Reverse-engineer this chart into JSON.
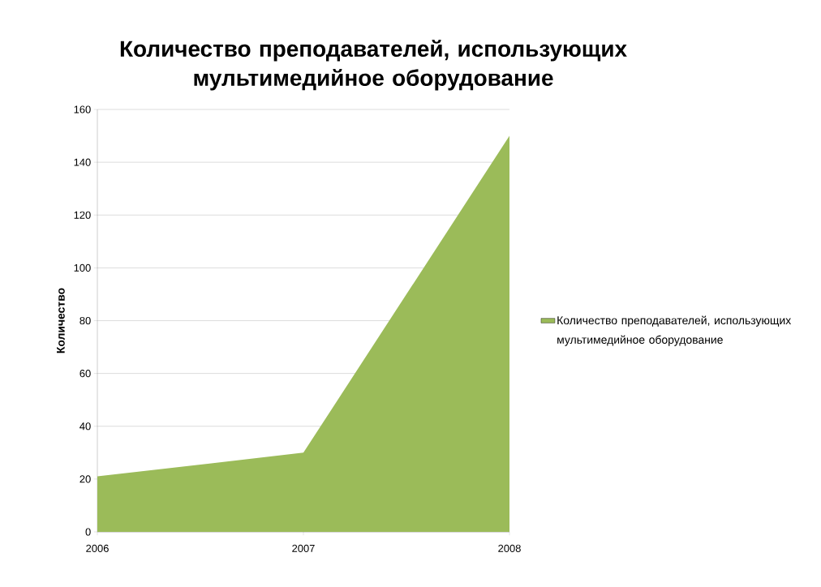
{
  "chart_data": {
    "type": "area",
    "title": "Количество преподавателей, использующих мультимедийное оборудование",
    "ylabel": "Количество",
    "categories": [
      "2006",
      "2007",
      "2008"
    ],
    "series": [
      {
        "name": "Количество преподавателей, использующих мультимедийное оборудование",
        "color": "#9bbb59",
        "values": [
          21,
          30,
          150
        ]
      }
    ],
    "ylim": [
      0,
      160
    ],
    "yticks": [
      0,
      20,
      40,
      60,
      80,
      100,
      120,
      140,
      160
    ],
    "grid": "y",
    "legend": "right"
  }
}
